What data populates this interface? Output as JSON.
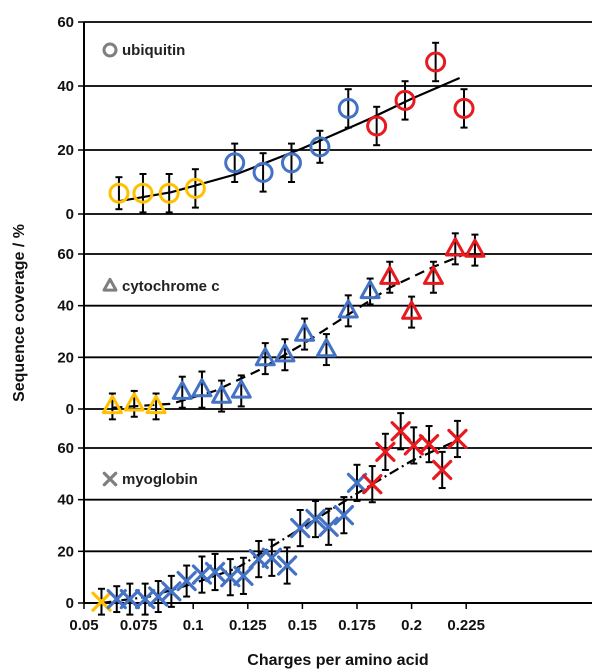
{
  "colors": {
    "low_charge": "#FFC000",
    "mid_charge": "#4472C4",
    "high_charge": "#E8191F",
    "error_bar": "#000000",
    "fit_line": "#000000",
    "legend_marker": "#7F7F7F"
  },
  "chart_data": {
    "type": "scatter",
    "xlabel": "Charges per amino acid",
    "ylabel": "Sequence coverage / %",
    "xlim": [
      0.05,
      0.23
    ],
    "x_ticks": [
      0.05,
      0.075,
      0.1,
      0.125,
      0.15,
      0.175,
      0.2,
      0.225
    ],
    "x_tick_labels": [
      "0.05",
      "0.075",
      "0.1",
      "0.125",
      "0.15",
      "0.175",
      "0.2",
      "0.225"
    ],
    "grid": "horizontal",
    "panels": [
      {
        "name": "ubiquitin",
        "marker": "circle",
        "marker_icon": "circle-icon",
        "fit_style": "solid",
        "ylim": [
          0,
          60
        ],
        "y_ticks": [
          0,
          20,
          40,
          60
        ],
        "y_tick_labels": [
          "0",
          "20",
          "40",
          "60"
        ],
        "points": [
          {
            "x": 0.066,
            "y": 6.5,
            "err": 5,
            "color": "low"
          },
          {
            "x": 0.077,
            "y": 6.5,
            "err": 6,
            "color": "low"
          },
          {
            "x": 0.089,
            "y": 6.5,
            "err": 6,
            "color": "low"
          },
          {
            "x": 0.101,
            "y": 8,
            "err": 6,
            "color": "low"
          },
          {
            "x": 0.119,
            "y": 16,
            "err": 6,
            "color": "mid"
          },
          {
            "x": 0.132,
            "y": 13,
            "err": 6,
            "color": "mid"
          },
          {
            "x": 0.145,
            "y": 16,
            "err": 6,
            "color": "mid"
          },
          {
            "x": 0.158,
            "y": 21,
            "err": 5,
            "color": "mid"
          },
          {
            "x": 0.171,
            "y": 33,
            "err": 6,
            "color": "mid"
          },
          {
            "x": 0.184,
            "y": 27.5,
            "err": 6,
            "color": "high"
          },
          {
            "x": 0.197,
            "y": 35.5,
            "err": 6,
            "color": "high"
          },
          {
            "x": 0.211,
            "y": 47.5,
            "err": 6,
            "color": "high"
          },
          {
            "x": 0.224,
            "y": 33,
            "err": 6,
            "color": "high"
          }
        ],
        "fit": [
          [
            0.066,
            4
          ],
          [
            0.09,
            6.8
          ],
          [
            0.12,
            12.5
          ],
          [
            0.15,
            20.5
          ],
          [
            0.18,
            29.5
          ],
          [
            0.2,
            36
          ],
          [
            0.222,
            42.5
          ]
        ]
      },
      {
        "name": "cytochrome c",
        "marker": "triangle",
        "marker_icon": "triangle-icon",
        "fit_style": "dashed",
        "ylim": [
          0,
          60
        ],
        "y_ticks": [
          0,
          20,
          40,
          60
        ],
        "y_tick_labels": [
          "0",
          "20",
          "40",
          "60"
        ],
        "points": [
          {
            "x": 0.063,
            "y": 1,
            "err": 5,
            "color": "low"
          },
          {
            "x": 0.073,
            "y": 2,
            "err": 5,
            "color": "low"
          },
          {
            "x": 0.083,
            "y": 1,
            "err": 5,
            "color": "low"
          },
          {
            "x": 0.095,
            "y": 6.5,
            "err": 6,
            "color": "mid"
          },
          {
            "x": 0.104,
            "y": 7.5,
            "err": 7,
            "color": "mid"
          },
          {
            "x": 0.113,
            "y": 5,
            "err": 6,
            "color": "mid"
          },
          {
            "x": 0.122,
            "y": 7,
            "err": 6,
            "color": "mid"
          },
          {
            "x": 0.133,
            "y": 19.5,
            "err": 6,
            "color": "mid"
          },
          {
            "x": 0.142,
            "y": 21,
            "err": 6,
            "color": "mid"
          },
          {
            "x": 0.151,
            "y": 29,
            "err": 6,
            "color": "mid"
          },
          {
            "x": 0.161,
            "y": 23,
            "err": 6,
            "color": "mid"
          },
          {
            "x": 0.171,
            "y": 38,
            "err": 6,
            "color": "mid"
          },
          {
            "x": 0.181,
            "y": 45.5,
            "err": 5,
            "color": "mid"
          },
          {
            "x": 0.19,
            "y": 51,
            "err": 6,
            "color": "high"
          },
          {
            "x": 0.2,
            "y": 37.5,
            "err": 6,
            "color": "high"
          },
          {
            "x": 0.21,
            "y": 51,
            "err": 6,
            "color": "high"
          },
          {
            "x": 0.22,
            "y": 62,
            "err": 6,
            "color": "high"
          },
          {
            "x": 0.229,
            "y": 61.5,
            "err": 6,
            "color": "high"
          }
        ],
        "fit": [
          [
            0.063,
            0.5
          ],
          [
            0.09,
            2
          ],
          [
            0.11,
            7
          ],
          [
            0.13,
            15
          ],
          [
            0.15,
            25
          ],
          [
            0.17,
            36
          ],
          [
            0.19,
            47
          ],
          [
            0.21,
            55
          ],
          [
            0.229,
            61.5
          ]
        ]
      },
      {
        "name": "myoglobin",
        "marker": "cross",
        "marker_icon": "cross-icon",
        "fit_style": "dash-dot",
        "ylim": [
          0,
          60
        ],
        "y_ticks": [
          0,
          20,
          40,
          60
        ],
        "y_tick_labels": [
          "0",
          "20",
          "40",
          "60"
        ],
        "points": [
          {
            "x": 0.058,
            "y": 0.5,
            "err": 5,
            "color": "low"
          },
          {
            "x": 0.065,
            "y": 1.5,
            "err": 5,
            "color": "mid"
          },
          {
            "x": 0.071,
            "y": 1.5,
            "err": 6,
            "color": "mid"
          },
          {
            "x": 0.078,
            "y": 1.5,
            "err": 6,
            "color": "mid"
          },
          {
            "x": 0.084,
            "y": 2.5,
            "err": 6,
            "color": "mid"
          },
          {
            "x": 0.09,
            "y": 4.5,
            "err": 6,
            "color": "mid"
          },
          {
            "x": 0.097,
            "y": 8.5,
            "err": 6,
            "color": "mid"
          },
          {
            "x": 0.104,
            "y": 11,
            "err": 7,
            "color": "mid"
          },
          {
            "x": 0.11,
            "y": 12,
            "err": 7,
            "color": "mid"
          },
          {
            "x": 0.117,
            "y": 10,
            "err": 7,
            "color": "mid"
          },
          {
            "x": 0.123,
            "y": 10.5,
            "err": 7,
            "color": "mid"
          },
          {
            "x": 0.13,
            "y": 17,
            "err": 7,
            "color": "mid"
          },
          {
            "x": 0.136,
            "y": 17.5,
            "err": 7,
            "color": "mid"
          },
          {
            "x": 0.143,
            "y": 14.5,
            "err": 7,
            "color": "mid"
          },
          {
            "x": 0.149,
            "y": 29,
            "err": 7,
            "color": "mid"
          },
          {
            "x": 0.156,
            "y": 32.5,
            "err": 7,
            "color": "mid"
          },
          {
            "x": 0.162,
            "y": 29.5,
            "err": 7,
            "color": "mid"
          },
          {
            "x": 0.169,
            "y": 34,
            "err": 7,
            "color": "mid"
          },
          {
            "x": 0.175,
            "y": 46.5,
            "err": 7,
            "color": "mid"
          },
          {
            "x": 0.182,
            "y": 46,
            "err": 7,
            "color": "high"
          },
          {
            "x": 0.188,
            "y": 58.5,
            "err": 7,
            "color": "high"
          },
          {
            "x": 0.195,
            "y": 66.5,
            "err": 7,
            "color": "high"
          },
          {
            "x": 0.201,
            "y": 61,
            "err": 7,
            "color": "high"
          },
          {
            "x": 0.208,
            "y": 61.5,
            "err": 7,
            "color": "high"
          },
          {
            "x": 0.214,
            "y": 51.5,
            "err": 7,
            "color": "high"
          },
          {
            "x": 0.221,
            "y": 63.5,
            "err": 7,
            "color": "high"
          }
        ],
        "fit": [
          [
            0.058,
            0
          ],
          [
            0.08,
            2.5
          ],
          [
            0.1,
            7.5
          ],
          [
            0.12,
            13.5
          ],
          [
            0.14,
            24
          ],
          [
            0.16,
            34.5
          ],
          [
            0.18,
            45
          ],
          [
            0.2,
            55
          ],
          [
            0.221,
            63
          ]
        ]
      }
    ]
  }
}
